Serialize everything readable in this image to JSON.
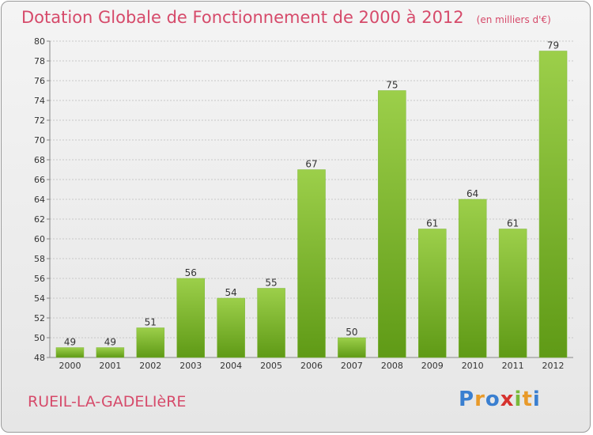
{
  "header": {
    "title": "Dotation Globale de Fonctionnement de 2000 à 2012",
    "unit": "(en milliers d'€)"
  },
  "footer": {
    "location": "RUEIL-LA-GADELIèRE",
    "logo": [
      "P",
      "r",
      "o",
      "x",
      "i",
      "t",
      "i"
    ]
  },
  "colors": {
    "title": "#d64a6a",
    "bar_top": "#9ccf4a",
    "bar_bottom": "#5f9a16",
    "logo": [
      "#3a7fd0",
      "#e89a2a",
      "#3a7fd0",
      "#d6322e",
      "#79b93a",
      "#e89a2a",
      "#3a7fd0"
    ]
  },
  "chart_data": {
    "type": "bar",
    "title": "Dotation Globale de Fonctionnement de 2000 à 2012",
    "categories": [
      "2000",
      "2001",
      "2002",
      "2003",
      "2004",
      "2005",
      "2006",
      "2007",
      "2008",
      "2009",
      "2010",
      "2011",
      "2012"
    ],
    "values": [
      49,
      49,
      51,
      56,
      54,
      55,
      67,
      50,
      75,
      61,
      64,
      61,
      79
    ],
    "ylim": [
      48,
      80
    ],
    "yticks": [
      48,
      50,
      52,
      54,
      56,
      58,
      60,
      62,
      64,
      66,
      68,
      70,
      72,
      74,
      76,
      78,
      80
    ],
    "grid": true,
    "xlabel": "",
    "ylabel": ""
  }
}
